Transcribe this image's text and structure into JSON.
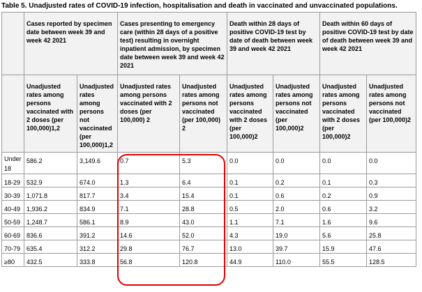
{
  "title": "Table 5. Unadjusted rates of COVID-19 infection, hospitalisation and death in vaccinated and unvaccinated populations.",
  "header_groups": [
    "",
    "Cases reported by specimen date between week 39 and week 42 2021",
    "Cases presenting to emergency care (within 28 days of a positive test) resulting in overnight inpatient admission, by specimen date between week 39 and week 42 2021",
    "Death within 28 days of positive COVID-19 test by date of death between week 39 and week 42 2021",
    "Death within 60 days of positive COVID-19 test by date of death between week 39 and week 42 2021"
  ],
  "sub_headers": [
    "",
    "Unadjusted rates among persons vaccinated with 2 doses (per 100,000)1,2",
    "Unadjusted rates among persons not vaccinated (per 100,000)1,2",
    "Unadjusted rates among persons vaccinated with 2 doses (per 100,000) 2",
    "Unadjusted rates among persons not vaccinated (per 100,000) 2",
    "Unadjusted rates among persons vaccinated with 2 doses (per 100,000)2",
    "Unadjusted rates among persons not vaccinated (per 100,000)2",
    "Unadjusted rates among persons vaccinated with 2 doses (per 100,000)2",
    "Unadjusted rates among persons not vaccinated (per 100,000)2"
  ],
  "rows": [
    [
      "Under 18",
      "586.2",
      "3,149.6",
      "0.7",
      "5.3",
      "0.0",
      "0.0",
      "0.0",
      "0.0"
    ],
    [
      "18-29",
      "532.9",
      "674.0",
      "1.3",
      "6.4",
      "0.1",
      "0.2",
      "0.1",
      "0.3"
    ],
    [
      "30-39",
      "1,071.8",
      "817.7",
      "3.4",
      "15.4",
      "0.1",
      "0.6",
      "0.2",
      "0.9"
    ],
    [
      "40-49",
      "1,936.2",
      "834.9",
      "7.1",
      "28.8",
      "0.5",
      "2.0",
      "0.6",
      "3.2"
    ],
    [
      "50-59",
      "1,248.7",
      "586.1",
      "8.9",
      "43.0",
      "1.1",
      "7.1",
      "1.6",
      "9.6"
    ],
    [
      "60-69",
      "836.6",
      "391.2",
      "14.6",
      "52.0",
      "4.3",
      "19.0",
      "5.6",
      "25.8"
    ],
    [
      "70-79",
      "635.4",
      "312.2",
      "29.8",
      "76.7",
      "13.0",
      "39.7",
      "15.9",
      "47.6"
    ],
    [
      "≥80",
      "432.5",
      "333.8",
      "56.8",
      "120.8",
      "44.9",
      "110.0",
      "55.5",
      "128.5"
    ]
  ],
  "colors": {
    "highlight": "#e00000",
    "border": "#9a9a9a"
  }
}
